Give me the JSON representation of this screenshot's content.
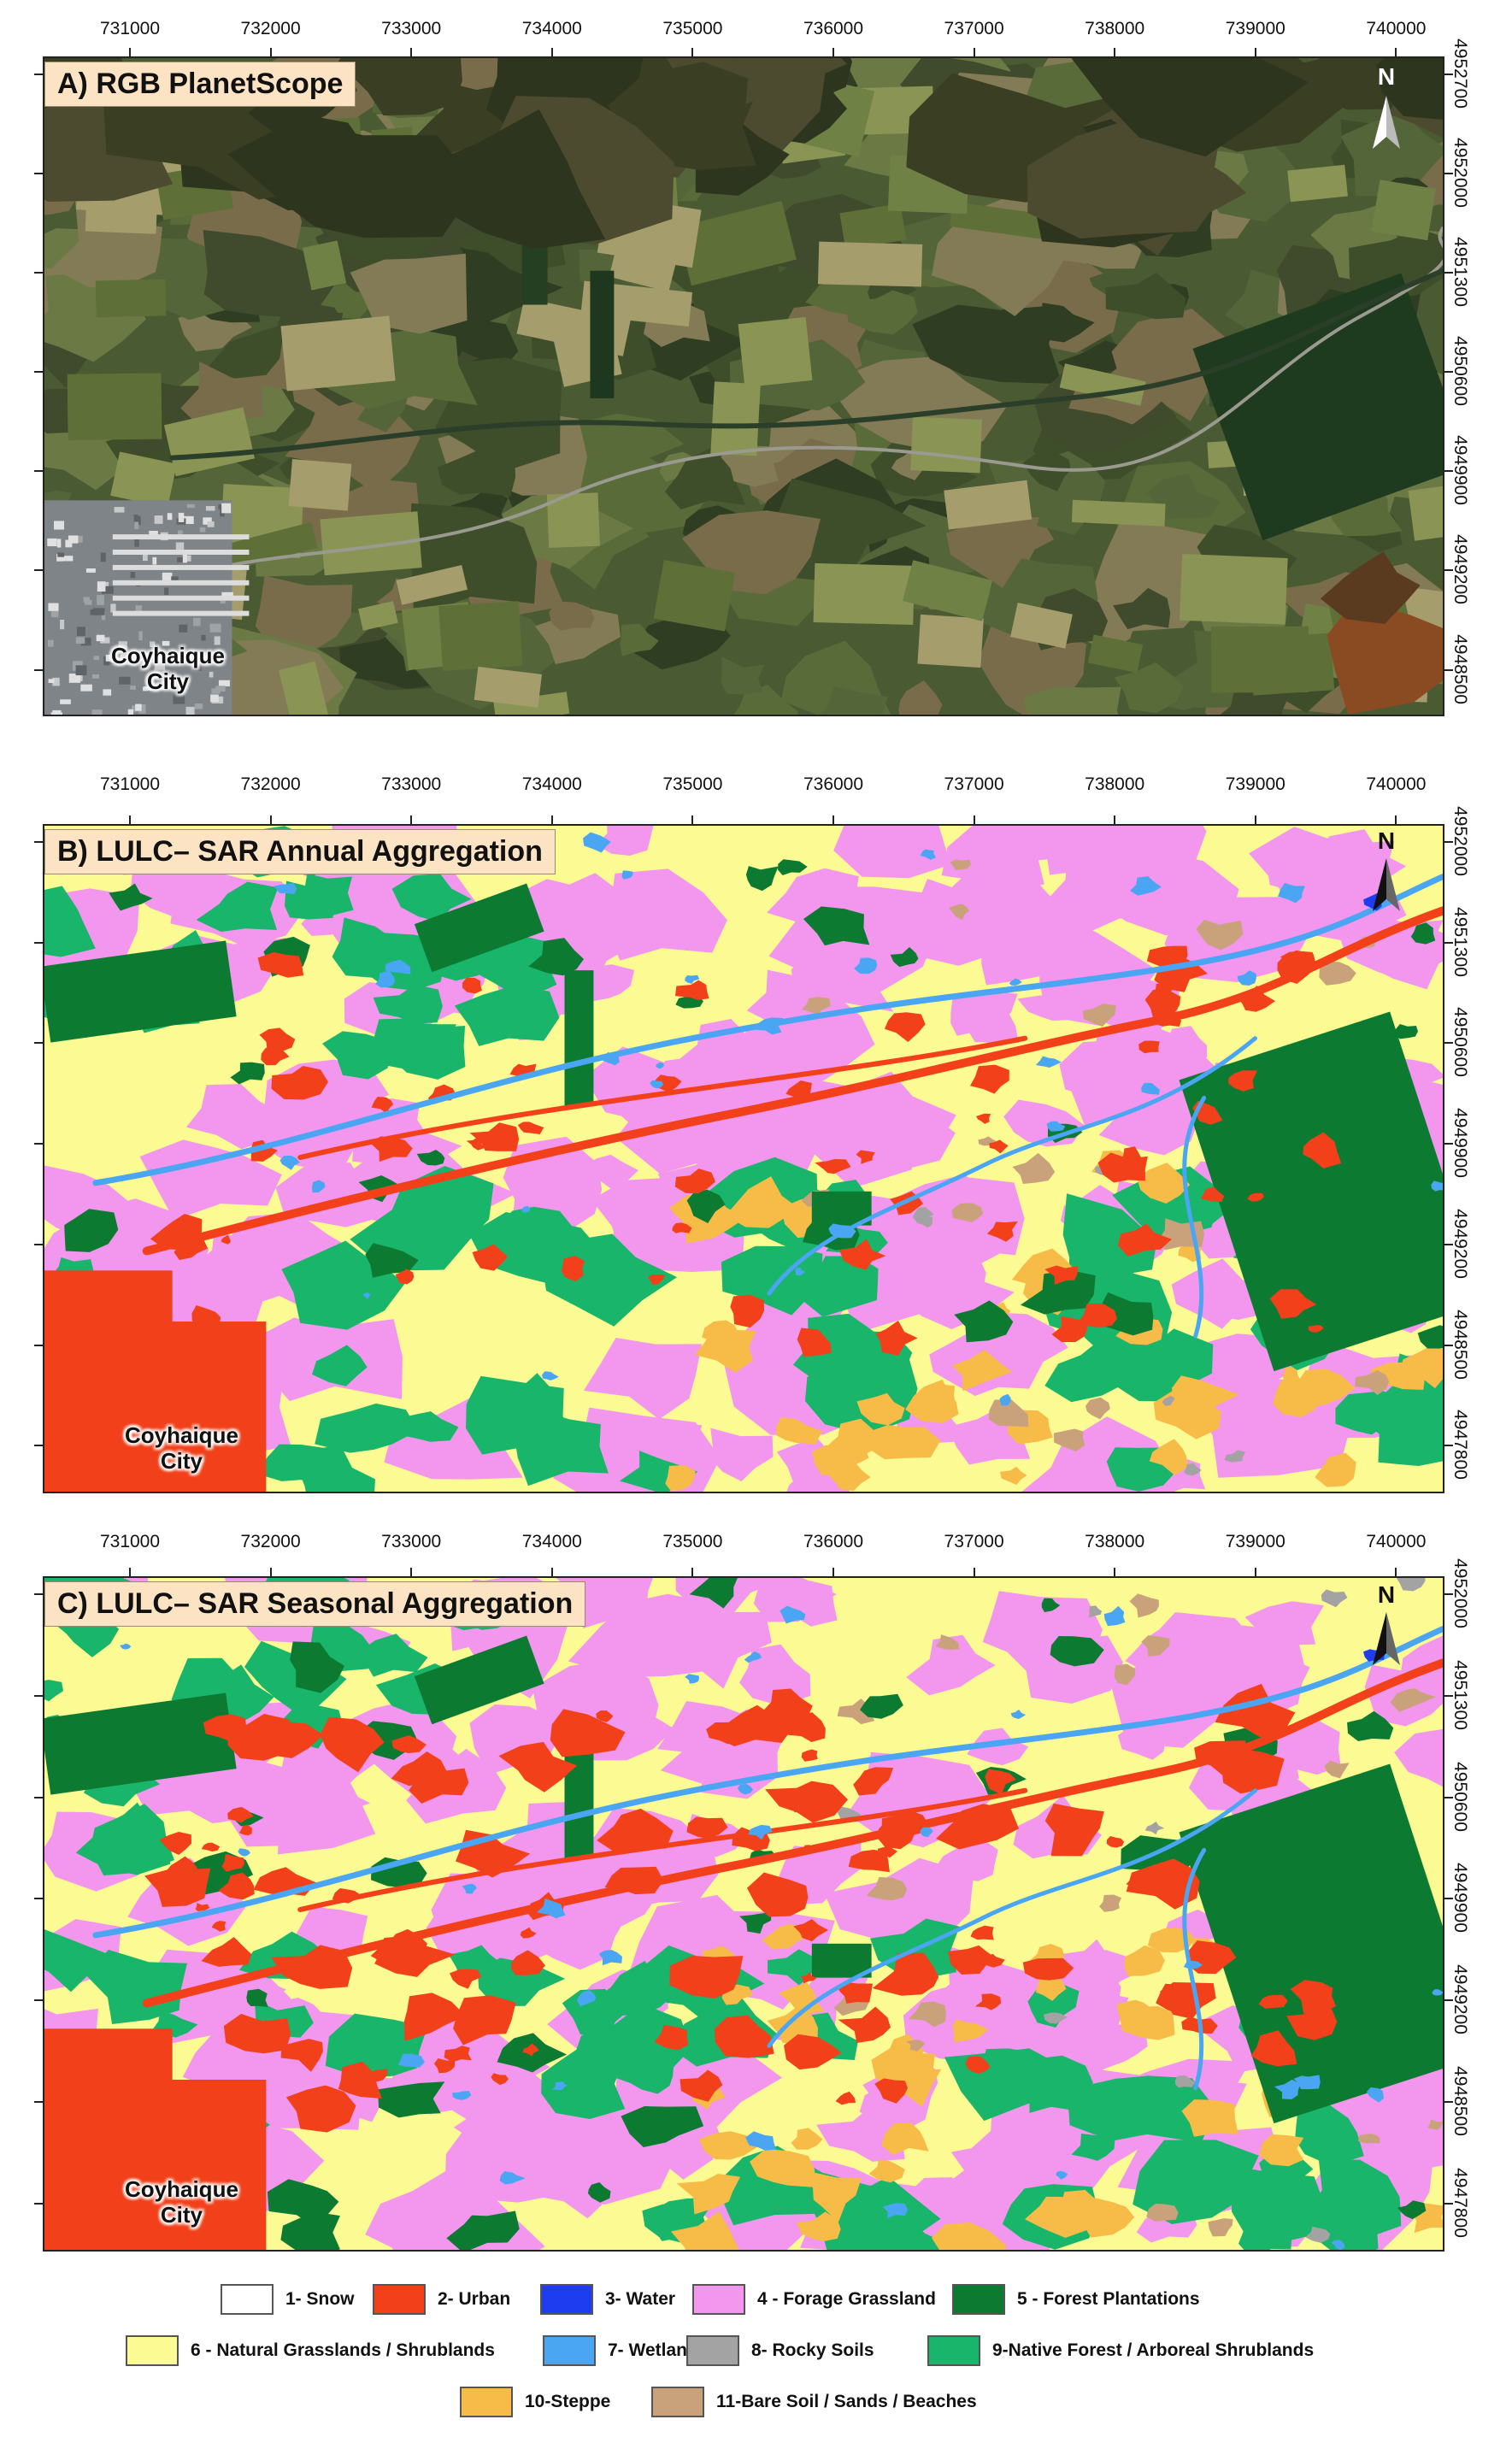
{
  "panels": [
    {
      "title": "A) RGB PlanetScope",
      "kind": "rgb",
      "x_ticks": [
        "731000",
        "732000",
        "733000",
        "734000",
        "735000",
        "736000",
        "737000",
        "738000",
        "739000",
        "740000"
      ],
      "y_ticks": [
        "4952700",
        "4952000",
        "4951300",
        "4950600",
        "4949900",
        "4949200",
        "4948500"
      ]
    },
    {
      "title": "B) LULC– SAR Annual Aggregation",
      "kind": "annual",
      "x_ticks": [
        "731000",
        "732000",
        "733000",
        "734000",
        "735000",
        "736000",
        "737000",
        "738000",
        "739000",
        "740000"
      ],
      "y_ticks": [
        "4952000",
        "4951300",
        "4950600",
        "4949900",
        "4949200",
        "4948500",
        "4947800"
      ]
    },
    {
      "title": "C) LULC– SAR Seasonal Aggregation",
      "kind": "seasonal",
      "x_ticks": [
        "731000",
        "732000",
        "733000",
        "734000",
        "735000",
        "736000",
        "737000",
        "738000",
        "739000",
        "740000"
      ],
      "y_ticks": [
        "4952000",
        "4951300",
        "4950600",
        "4949900",
        "4949200",
        "4948500",
        "4947800"
      ]
    }
  ],
  "city_label_line1": "Coyhaique",
  "city_label_line2": "City",
  "north_label": "N",
  "legend": [
    {
      "label": "1- Snow",
      "color": "#ffffff"
    },
    {
      "label": "2- Urban",
      "color": "#f2401a"
    },
    {
      "label": "3- Water",
      "color": "#1f3df0"
    },
    {
      "label": "4 - Forage Grassland",
      "color": "#f296ee"
    },
    {
      "label": "5 - Forest Plantations",
      "color": "#0d7a32"
    },
    {
      "label": "6 - Natural Grasslands / Shrublands",
      "color": "#fbfa93"
    },
    {
      "label": "7- Wetlands",
      "color": "#4aa5f2"
    },
    {
      "label": "8- Rocky Soils",
      "color": "#a3a3a3"
    },
    {
      "label": "9-Native Forest / Arboreal Shrublands",
      "color": "#18b56a"
    },
    {
      "label": "10-Steppe",
      "color": "#f7bc48"
    },
    {
      "label": "11-Bare Soil / Sands / Beaches",
      "color": "#c9a27c"
    }
  ]
}
